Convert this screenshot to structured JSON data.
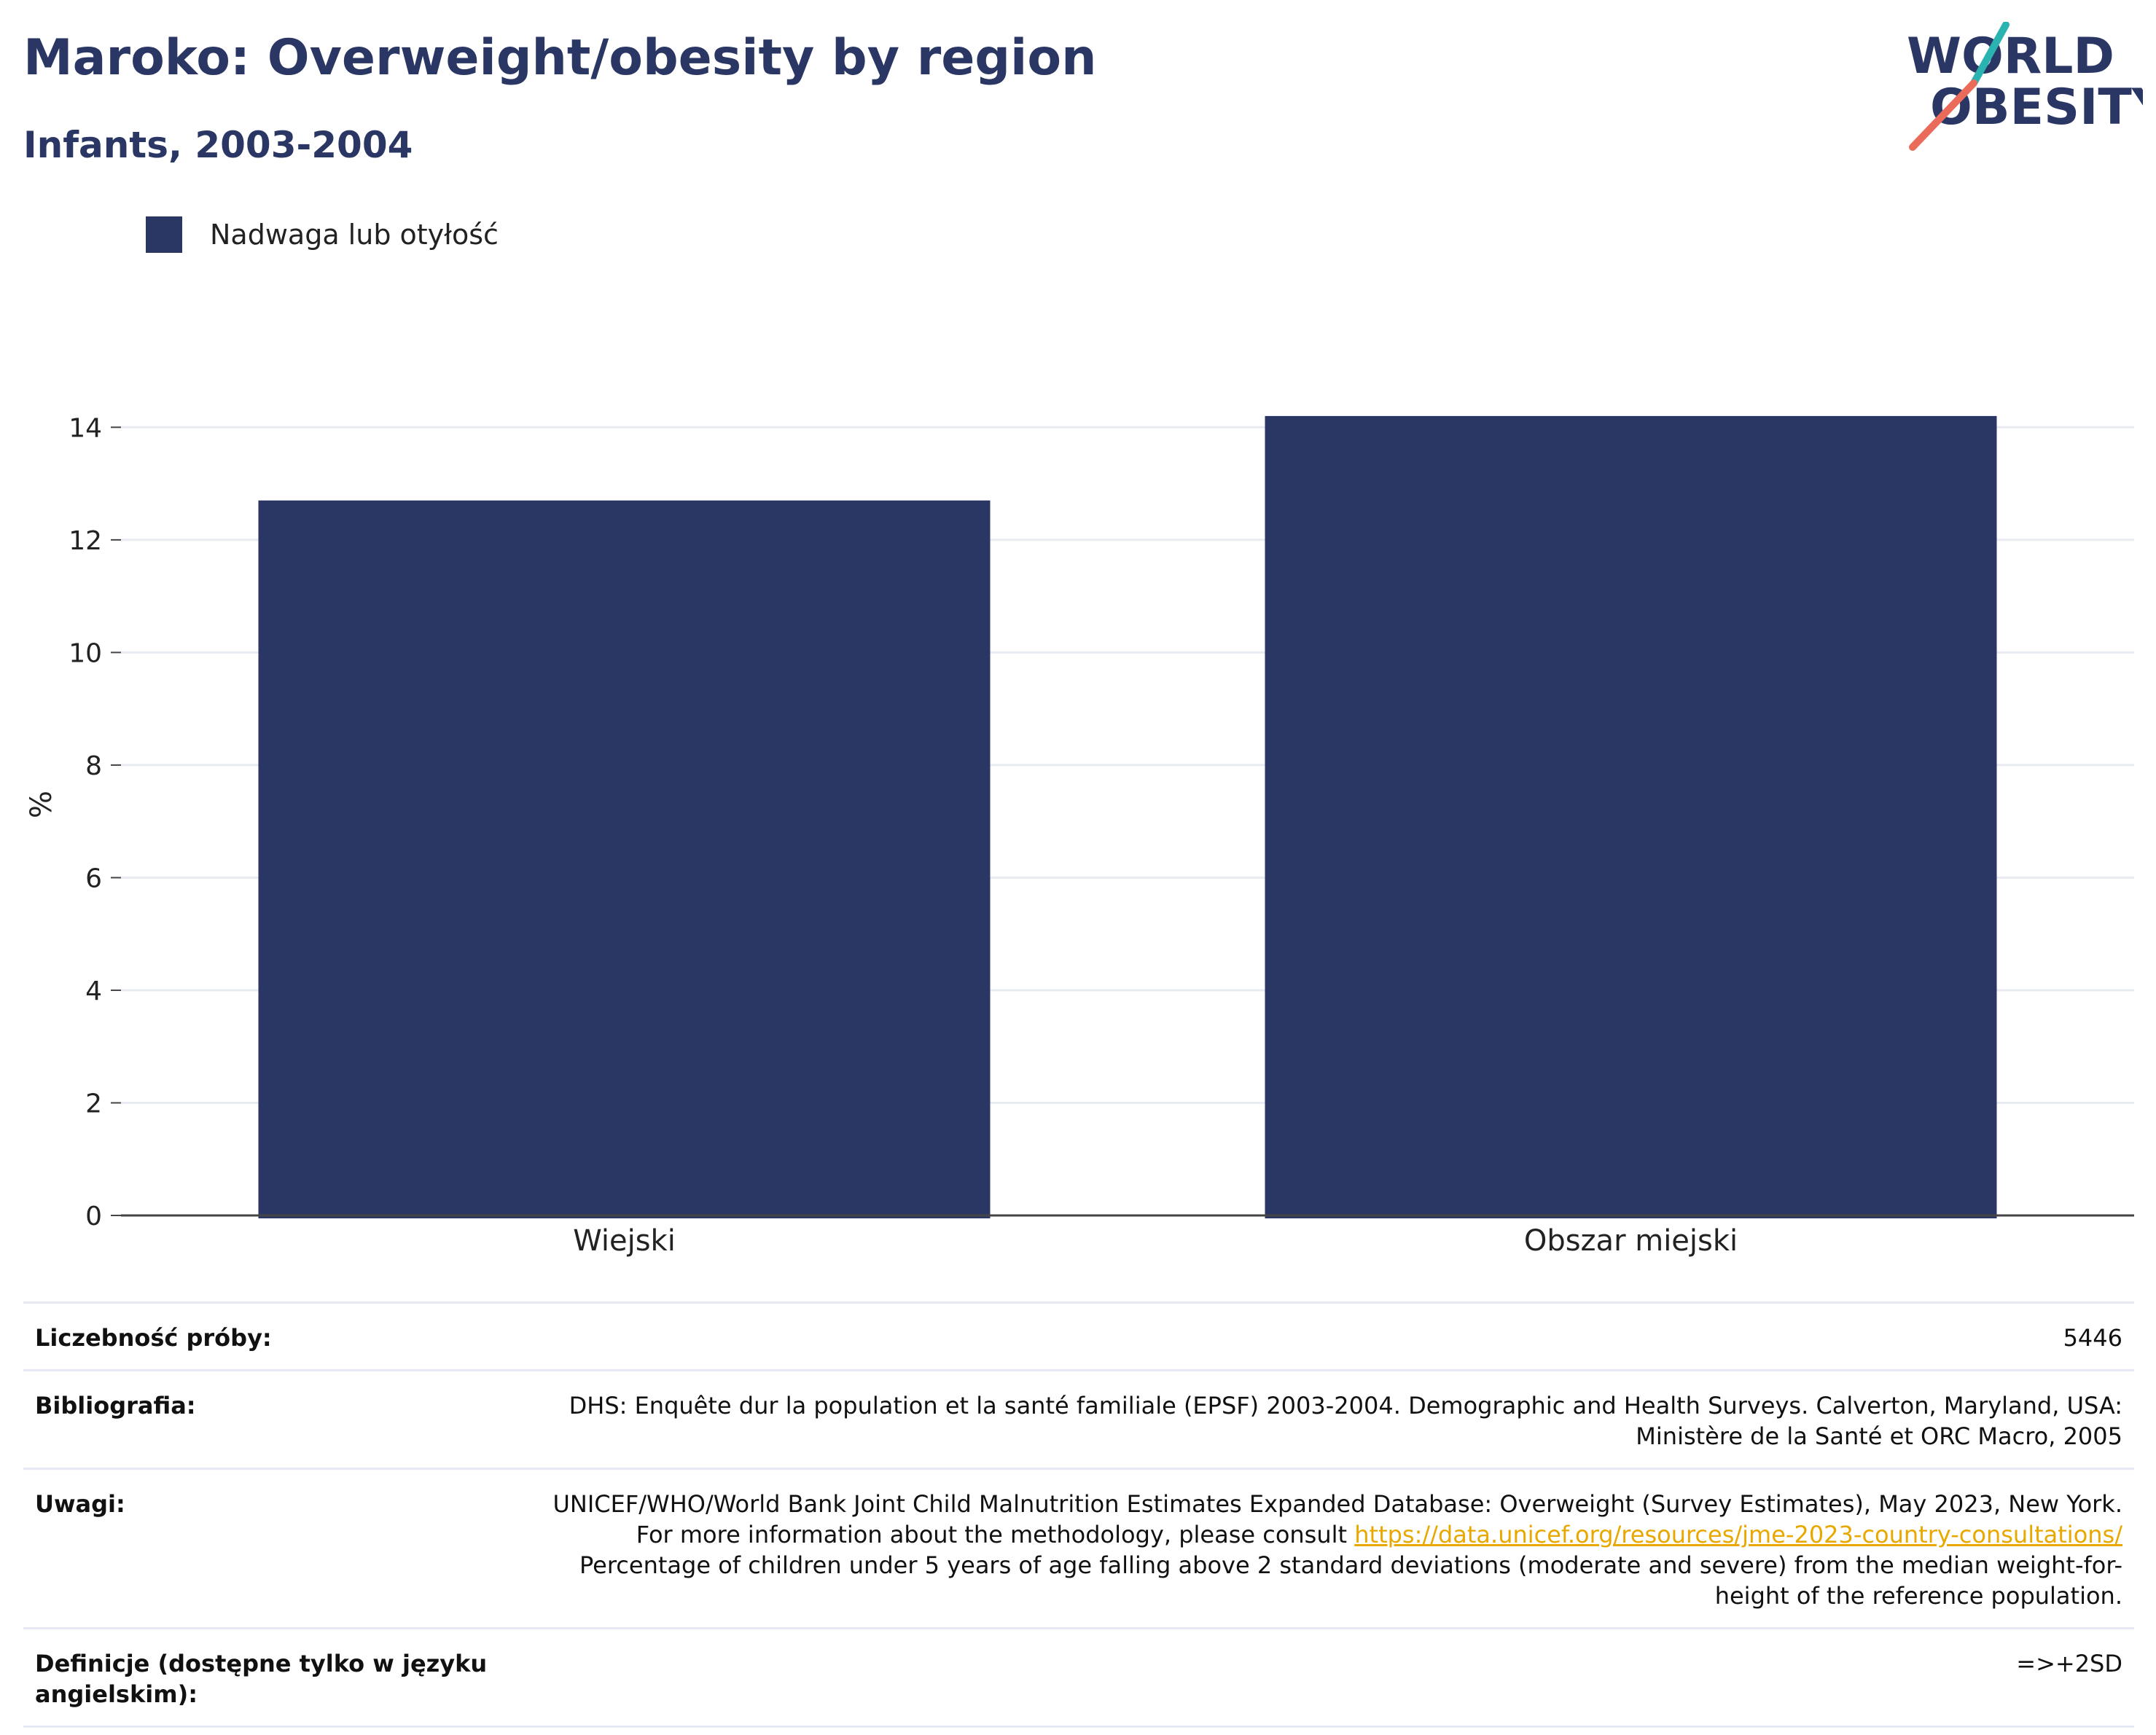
{
  "header": {
    "title": "Maroko: Overweight/obesity by region",
    "subtitle": "Infants, 2003-2004"
  },
  "logo": {
    "line1": "WORLD",
    "line2": "OBESITY"
  },
  "colors": {
    "bar": "#2a3663",
    "title": "#2a3663",
    "link": "#e9a800",
    "logo_teal": "#2ab3b1",
    "logo_red": "#ea6b5a"
  },
  "chart_data": {
    "type": "bar",
    "categories": [
      "Wiejski",
      "Obszar miejski"
    ],
    "series": [
      {
        "name": "Nadwaga lub otyłość",
        "values": [
          12.7,
          14.2
        ]
      }
    ],
    "ylabel": "%",
    "xlabel": "",
    "ylim": [
      0,
      14.6
    ],
    "yticks": [
      0,
      2,
      4,
      6,
      8,
      10,
      12,
      14
    ],
    "grid": true,
    "legend_position": "top-left"
  },
  "info": {
    "sample_label": "Liczebność próby:",
    "sample_value": "5446",
    "bibliography_label": "Bibliografia:",
    "bibliography_value": "DHS: Enquête dur la population et la santé familiale (EPSF) 2003-2004. Demographic and Health Surveys. Calverton, Maryland, USA: Ministère de la Santé et ORC Macro, 2005",
    "notes_label": "Uwagi:",
    "notes_text_before": "UNICEF/WHO/World Bank Joint Child Malnutrition Estimates Expanded Database: Overweight (Survey Estimates), May 2023, New York. For more information about the methodology, please consult ",
    "notes_link": "https://data.unicef.org/resources/jme-2023-country-consultations/",
    "notes_text_after": " Percentage of children under 5 years of age falling above 2 standard deviations (moderate and severe) from the median weight-for-height of the reference population.",
    "definitions_label": "Definicje (dostępne tylko w języku angielskim):",
    "definitions_value": "=>+2SD"
  }
}
